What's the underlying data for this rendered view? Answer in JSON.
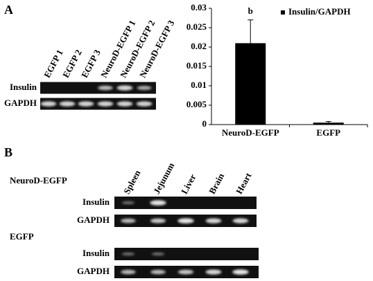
{
  "panel_a": {
    "label": "A",
    "lanes": [
      "EGFP 1",
      "EGFP 2",
      "EGFP 3",
      "NeuroD-EGFP 1",
      "NeuroD-EGFP 2",
      "NeuroD-EGFP 3"
    ],
    "rows": [
      "Insulin",
      "GAPDH"
    ]
  },
  "chart_data": {
    "type": "bar",
    "categories": [
      "NeuroD-EGFP",
      "EGFP"
    ],
    "series": [
      {
        "name": "Insulin/GAPDH",
        "color": "#000000",
        "values": [
          0.021,
          0.0005
        ],
        "errors": [
          0.006,
          0.0003
        ]
      }
    ],
    "annotation": "b",
    "ylim": [
      0,
      0.03
    ],
    "yticks": [
      0,
      0.005,
      0.01,
      0.015,
      0.02,
      0.025,
      0.03
    ],
    "grid": false,
    "legend": "upper right"
  },
  "panel_b": {
    "label": "B",
    "lanes": [
      "Spleen",
      "Jejunum",
      "Liver",
      "Brain",
      "Heart"
    ],
    "groups": [
      {
        "name": "NeuroD-EGFP",
        "rows": [
          "Insulin",
          "GAPDH"
        ]
      },
      {
        "name": "EGFP",
        "rows": [
          "Insulin",
          "GAPDH"
        ]
      }
    ]
  }
}
